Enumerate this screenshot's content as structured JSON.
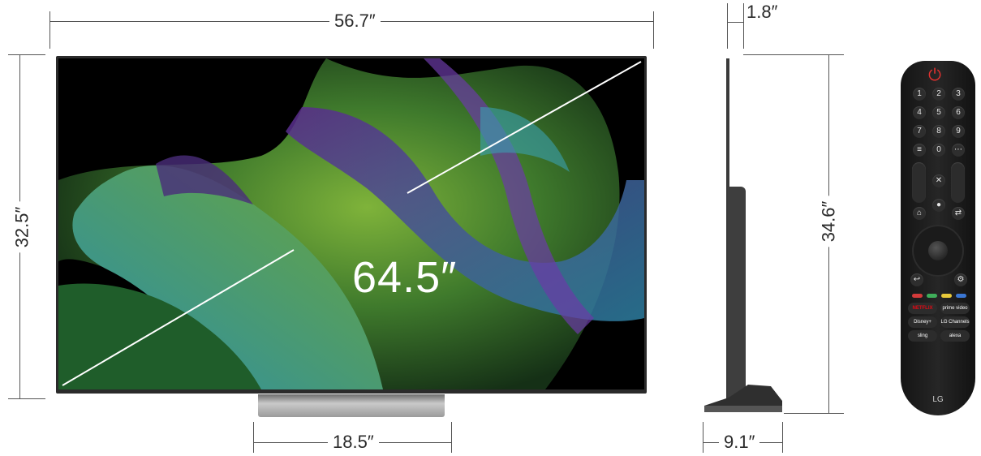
{
  "dimensions": {
    "width": "56.7″",
    "height": "32.5″",
    "diagonal": "64.5″",
    "stand_width": "18.5″",
    "depth_panel": "1.8″",
    "height_with_stand": "34.6″",
    "stand_depth": "9.1″"
  },
  "remote": {
    "number_keys": [
      "1",
      "2",
      "3",
      "4",
      "5",
      "6",
      "7",
      "8",
      "9",
      "0"
    ],
    "app_buttons": [
      "NETFLIX",
      "prime video",
      "Disney+",
      "LG Channels",
      "sling",
      "alexa"
    ],
    "brand": "LG",
    "power_icon": "power-icon",
    "colors": {
      "red": "#d33a3a",
      "green": "#3fae5a",
      "yellow": "#e8c93a",
      "blue": "#3a76d3",
      "netflix": "#e50914",
      "power": "#e0312f"
    }
  }
}
